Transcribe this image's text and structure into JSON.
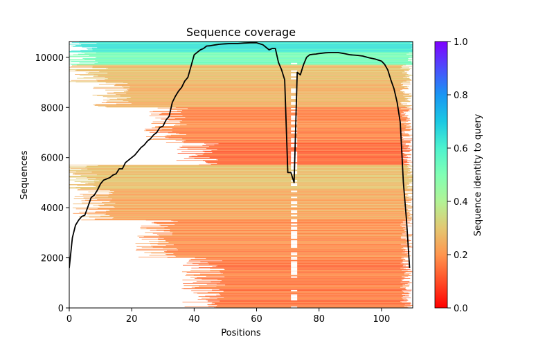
{
  "chart_data": {
    "type": "heatmap",
    "title": "Sequence coverage",
    "xlabel": "Positions",
    "ylabel": "Sequences",
    "xlim": [
      0,
      110
    ],
    "ylim": [
      0,
      10630
    ],
    "xticks": [
      0,
      20,
      40,
      60,
      80,
      100
    ],
    "xtick_labels": [
      "0",
      "20",
      "40",
      "60",
      "80",
      "100"
    ],
    "yticks": [
      0,
      2000,
      4000,
      6000,
      8000,
      10000
    ],
    "ytick_labels": [
      "0",
      "2000",
      "4000",
      "6000",
      "8000",
      "10000"
    ],
    "grid": false,
    "colorbar": {
      "label": "Sequence identity to query",
      "colormap": "rainbow_r",
      "range": [
        0.0,
        1.0
      ],
      "ticks": [
        0.0,
        0.2,
        0.4,
        0.6,
        0.8,
        1.0
      ],
      "tick_labels": [
        "0.0",
        "0.2",
        "0.4",
        "0.6",
        "0.8",
        "1.0"
      ],
      "placement": "right"
    },
    "coverage_line": {
      "name": "coverage",
      "color": "#000000",
      "x": [
        0,
        1,
        2,
        3,
        4,
        5,
        6,
        7,
        8,
        9,
        10,
        11,
        12,
        13,
        14,
        15,
        16,
        17,
        18,
        19,
        20,
        21,
        22,
        23,
        24,
        25,
        26,
        27,
        28,
        29,
        30,
        31,
        32,
        33,
        34,
        35,
        36,
        37,
        38,
        39,
        40,
        41,
        42,
        43,
        44,
        45,
        46,
        47,
        48,
        49,
        50,
        52,
        54,
        56,
        58,
        60,
        62,
        63,
        64,
        65,
        66,
        67,
        68,
        69,
        70,
        71,
        72,
        73,
        74,
        75,
        76,
        77,
        78,
        79,
        80,
        82,
        84,
        86,
        88,
        90,
        92,
        94,
        96,
        98,
        100,
        101,
        102,
        103,
        104,
        105,
        106,
        107,
        108,
        109
      ],
      "y": [
        1600,
        2800,
        3300,
        3500,
        3650,
        3700,
        4050,
        4400,
        4500,
        4700,
        4950,
        5100,
        5150,
        5200,
        5300,
        5350,
        5550,
        5550,
        5800,
        5900,
        6000,
        6100,
        6250,
        6400,
        6500,
        6650,
        6750,
        6900,
        7000,
        7200,
        7250,
        7500,
        7650,
        8200,
        8450,
        8650,
        8800,
        9050,
        9200,
        9650,
        10100,
        10200,
        10300,
        10350,
        10450,
        10460,
        10480,
        10500,
        10520,
        10530,
        10540,
        10550,
        10550,
        10570,
        10580,
        10580,
        10500,
        10400,
        10300,
        10350,
        10350,
        9800,
        9500,
        9100,
        5400,
        5400,
        5000,
        9400,
        9300,
        9700,
        10000,
        10100,
        10120,
        10130,
        10150,
        10180,
        10190,
        10190,
        10150,
        10100,
        10080,
        10050,
        9980,
        9930,
        9850,
        9720,
        9500,
        9100,
        8750,
        8200,
        7400,
        5000,
        3500,
        1600
      ]
    },
    "bands": [
      {
        "y_range": [
          10200,
          10630
        ],
        "identity": 0.62,
        "x_range": [
          0,
          109
        ]
      },
      {
        "y_range": [
          9700,
          10200
        ],
        "identity": 0.52,
        "x_range": [
          0,
          108
        ]
      },
      {
        "y_range": [
          9000,
          9700
        ],
        "identity": 0.28,
        "x_range": [
          3,
          106
        ]
      },
      {
        "y_range": [
          8000,
          9000
        ],
        "identity": 0.25,
        "x_range": [
          10,
          106
        ]
      },
      {
        "y_range": [
          6600,
          8000
        ],
        "identity": 0.18,
        "x_range": [
          28,
          106
        ]
      },
      {
        "y_range": [
          5700,
          6600
        ],
        "identity": 0.14,
        "x_range": [
          38,
          106
        ]
      },
      {
        "y_range": [
          4700,
          5700
        ],
        "identity": 0.28,
        "x_range": [
          0,
          108
        ]
      },
      {
        "y_range": [
          3500,
          4700
        ],
        "identity": 0.24,
        "x_range": [
          5,
          107
        ]
      },
      {
        "y_range": [
          2000,
          3500
        ],
        "identity": 0.19,
        "x_range": [
          25,
          106
        ]
      },
      {
        "y_range": [
          0,
          2000
        ],
        "identity": 0.16,
        "x_range": [
          40,
          106
        ]
      }
    ],
    "gap_region": {
      "x_range": [
        71,
        73
      ],
      "description": "low coverage gap"
    }
  }
}
